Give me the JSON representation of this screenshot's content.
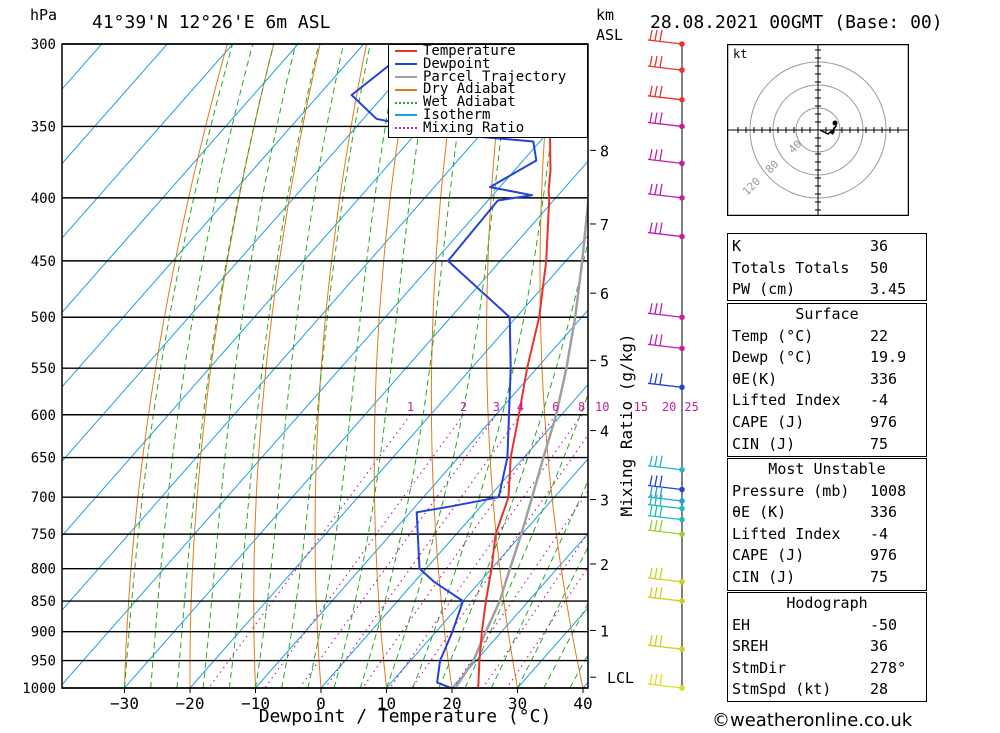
{
  "header": {
    "pressure_unit": "hPa",
    "location": "41°39'N  12°26'E  6m  ASL",
    "height_unit": "km",
    "height_ref": "ASL",
    "datetime": "28.08.2021  00GMT  (Base: 00)"
  },
  "chart_data": {
    "type": "skew-t",
    "xlabel": "Dewpoint / Temperature (°C)",
    "ylabel": "hPa",
    "mixing_ratio_axis_label": "Mixing Ratio (g/kg)",
    "x_ticks": [
      -30,
      -20,
      -10,
      0,
      10,
      20,
      30,
      40
    ],
    "p_ticks": [
      300,
      350,
      400,
      450,
      500,
      550,
      600,
      650,
      700,
      750,
      800,
      850,
      900,
      950,
      1000
    ],
    "height_km_ticks": [
      {
        "label": "8",
        "p": 366
      },
      {
        "label": "7",
        "p": 420
      },
      {
        "label": "6",
        "p": 478
      },
      {
        "label": "5",
        "p": 542
      },
      {
        "label": "4",
        "p": 618
      },
      {
        "label": "3",
        "p": 703
      },
      {
        "label": "2",
        "p": 793
      },
      {
        "label": "1",
        "p": 898
      },
      {
        "label": "LCL",
        "p": 980
      }
    ],
    "mixing_ratio_labels": [
      "1",
      "2",
      "3",
      "4",
      "6",
      "8",
      "10",
      "15",
      "20",
      "25"
    ],
    "mixing_ratio_values": [
      1,
      2,
      3,
      4,
      6,
      8,
      10,
      15,
      20,
      25
    ],
    "legend": [
      {
        "name": "Temperature",
        "color": "#e8332b",
        "dash": false
      },
      {
        "name": "Dewpoint",
        "color": "#2441d8",
        "dash": false
      },
      {
        "name": "Parcel Trajectory",
        "color": "#a0a0a0",
        "dash": false
      },
      {
        "name": "Dry Adiabat",
        "color": "#e07b1a",
        "dash": false
      },
      {
        "name": "Wet Adiabat",
        "color": "#22aa22",
        "dash": true
      },
      {
        "name": "Isotherm",
        "color": "#1f9fe0",
        "dash": false
      },
      {
        "name": "Mixing Ratio",
        "color": "#c41ea0",
        "dash": true
      }
    ],
    "temperature": [
      {
        "p": 1000,
        "t": 24.0
      },
      {
        "p": 950,
        "t": 20.5
      },
      {
        "p": 900,
        "t": 17.0
      },
      {
        "p": 850,
        "t": 13.5
      },
      {
        "p": 800,
        "t": 10.0
      },
      {
        "p": 750,
        "t": 6.0
      },
      {
        "p": 700,
        "t": 3.0
      },
      {
        "p": 650,
        "t": -2.0
      },
      {
        "p": 600,
        "t": -6.5
      },
      {
        "p": 550,
        "t": -11.5
      },
      {
        "p": 500,
        "t": -16.5
      },
      {
        "p": 450,
        "t": -23.0
      },
      {
        "p": 400,
        "t": -31.0
      },
      {
        "p": 395,
        "t": -32.0
      },
      {
        "p": 380,
        "t": -34.5
      },
      {
        "p": 350,
        "t": -40.5
      },
      {
        "p": 320,
        "t": -45.5
      },
      {
        "p": 300,
        "t": -50.0
      }
    ],
    "dewpoint": [
      {
        "p": 1000,
        "t": 19.9
      },
      {
        "p": 990,
        "t": 17.0
      },
      {
        "p": 950,
        "t": 14.5
      },
      {
        "p": 900,
        "t": 12.5
      },
      {
        "p": 850,
        "t": 10.0
      },
      {
        "p": 820,
        "t": 3.0
      },
      {
        "p": 800,
        "t": -1.0
      },
      {
        "p": 720,
        "t": -9.0
      },
      {
        "p": 712,
        "t": -4.5
      },
      {
        "p": 700,
        "t": 1.5
      },
      {
        "p": 650,
        "t": -2.5
      },
      {
        "p": 600,
        "t": -8.0
      },
      {
        "p": 550,
        "t": -14.0
      },
      {
        "p": 500,
        "t": -21.0
      },
      {
        "p": 450,
        "t": -38.0
      },
      {
        "p": 402,
        "t": -38.5
      },
      {
        "p": 398,
        "t": -34.0
      },
      {
        "p": 392,
        "t": -41.5
      },
      {
        "p": 373,
        "t": -38.0
      },
      {
        "p": 360,
        "t": -41.0
      },
      {
        "p": 355,
        "t": -55.0
      },
      {
        "p": 345,
        "t": -68.0
      },
      {
        "p": 330,
        "t": -75.0
      },
      {
        "p": 300,
        "t": -72.0
      }
    ],
    "parcel": [
      {
        "p": 1000,
        "t": 20.5
      },
      {
        "p": 950,
        "t": 19.6
      },
      {
        "p": 900,
        "t": 17.6
      },
      {
        "p": 850,
        "t": 15.6
      },
      {
        "p": 800,
        "t": 12.8
      },
      {
        "p": 750,
        "t": 9.9
      },
      {
        "p": 700,
        "t": 6.6
      },
      {
        "p": 650,
        "t": 3.0
      },
      {
        "p": 600,
        "t": -0.8
      },
      {
        "p": 550,
        "t": -5.5
      },
      {
        "p": 500,
        "t": -11.0
      },
      {
        "p": 450,
        "t": -17.5
      },
      {
        "p": 400,
        "t": -25.0
      },
      {
        "p": 350,
        "t": -34.0
      },
      {
        "p": 300,
        "t": -44.5
      }
    ],
    "wind_barbs": [
      {
        "p": 300,
        "color": "#e8332b"
      },
      {
        "p": 315,
        "color": "#e8332b"
      },
      {
        "p": 333,
        "color": "#e8332b"
      },
      {
        "p": 350,
        "color": "#c41ea0"
      },
      {
        "p": 375,
        "color": "#c41ea0"
      },
      {
        "p": 400,
        "color": "#c41ea0"
      },
      {
        "p": 430,
        "color": "#c41ea0"
      },
      {
        "p": 500,
        "color": "#c41ea0"
      },
      {
        "p": 530,
        "color": "#c41ea0"
      },
      {
        "p": 570,
        "color": "#2441d8"
      },
      {
        "p": 665,
        "color": "#22bbbb"
      },
      {
        "p": 690,
        "color": "#2441d8"
      },
      {
        "p": 705,
        "color": "#1f9fe0"
      },
      {
        "p": 715,
        "color": "#22bbbb"
      },
      {
        "p": 730,
        "color": "#22bbbb"
      },
      {
        "p": 750,
        "color": "#9acd32"
      },
      {
        "p": 820,
        "color": "#cfcf20"
      },
      {
        "p": 850,
        "color": "#cfcf20"
      },
      {
        "p": 930,
        "color": "#cfcf20"
      },
      {
        "p": 1000,
        "color": "#dede20"
      }
    ]
  },
  "hodograph": {
    "unit_label": "kt",
    "ring_labels": [
      "40",
      "80",
      "120"
    ]
  },
  "indices": [
    {
      "k": "K",
      "v": "36"
    },
    {
      "k": "Totals Totals",
      "v": "50"
    },
    {
      "k": "PW (cm)",
      "v": "3.45"
    }
  ],
  "surface": {
    "title": "Surface",
    "rows": [
      {
        "k": "Temp (°C)",
        "v": "22"
      },
      {
        "k": "Dewp (°C)",
        "v": "19.9"
      },
      {
        "k": "θE(K)",
        "v": "336"
      },
      {
        "k": "Lifted Index",
        "v": "-4"
      },
      {
        "k": "CAPE (J)",
        "v": "976"
      },
      {
        "k": "CIN (J)",
        "v": "75"
      }
    ]
  },
  "most_unstable": {
    "title": "Most Unstable",
    "rows": [
      {
        "k": "Pressure (mb)",
        "v": "1008"
      },
      {
        "k": "θE (K)",
        "v": "336"
      },
      {
        "k": "Lifted Index",
        "v": "-4"
      },
      {
        "k": "CAPE (J)",
        "v": "976"
      },
      {
        "k": "CIN (J)",
        "v": "75"
      }
    ]
  },
  "hodograph_stats": {
    "title": "Hodograph",
    "rows": [
      {
        "k": "EH",
        "v": "-50"
      },
      {
        "k": "SREH",
        "v": "36"
      },
      {
        "k": "StmDir",
        "v": "278°"
      },
      {
        "k": "StmSpd (kt)",
        "v": "28"
      }
    ]
  },
  "footer": "©weatheronline.co.uk"
}
